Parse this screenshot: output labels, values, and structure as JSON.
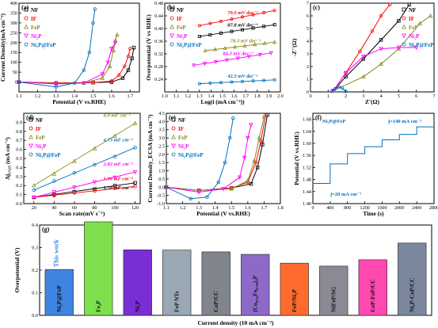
{
  "chart_data": [
    {
      "panel": "(a)",
      "type": "line",
      "xlabel": "Potential (V vs.RHE)",
      "ylabel": "Current Density(mA cm⁻²)",
      "xlim": [
        1.1,
        1.75
      ],
      "ylim": [
        -50,
        400
      ],
      "xticks": [
        1.1,
        1.2,
        1.3,
        1.4,
        1.5,
        1.6,
        1.7
      ],
      "yticks": [
        0,
        50,
        100,
        150,
        200,
        250,
        300,
        350,
        400
      ],
      "series": [
        {
          "name": "NF",
          "color": "#000000",
          "marker": "square",
          "x": [
            1.1,
            1.3,
            1.5,
            1.6,
            1.66,
            1.69,
            1.71,
            1.72
          ],
          "y": [
            0,
            -5,
            -3,
            0,
            20,
            60,
            120,
            175
          ]
        },
        {
          "name": "IF",
          "color": "#ff0000",
          "marker": "circle",
          "x": [
            1.1,
            1.3,
            1.5,
            1.6,
            1.64,
            1.67,
            1.69,
            1.7
          ],
          "y": [
            0,
            -5,
            -3,
            5,
            35,
            80,
            130,
            170
          ]
        },
        {
          "name": "FeP",
          "color": "#8a8a1e",
          "marker": "triangle",
          "x": [
            1.1,
            1.3,
            1.45,
            1.55,
            1.59,
            1.61,
            1.62,
            1.63
          ],
          "y": [
            0,
            -8,
            -5,
            20,
            80,
            160,
            210,
            240
          ]
        },
        {
          "name": "Ni₂P",
          "color": "#ff00ff",
          "marker": "triangle-down",
          "x": [
            1.1,
            1.3,
            1.45,
            1.55,
            1.58,
            1.6,
            1.62
          ],
          "y": [
            0,
            -10,
            -5,
            40,
            100,
            170,
            200
          ]
        },
        {
          "name": "Ni₂P@FeP",
          "color": "#0070c0",
          "marker": "circle",
          "x": [
            1.1,
            1.3,
            1.4,
            1.45,
            1.48,
            1.5,
            1.51
          ],
          "y": [
            0,
            -25,
            -5,
            60,
            150,
            300,
            370
          ]
        }
      ]
    },
    {
      "panel": "(b)",
      "type": "scatter",
      "xlabel": "Log(i (mA cm⁻²))",
      "ylabel": "Overpotential (V vs RHE)",
      "xlim": [
        1.0,
        2.0
      ],
      "ylim": [
        0.2,
        0.48
      ],
      "xticks": [
        1.0,
        1.1,
        1.2,
        1.3,
        1.4,
        1.5,
        1.6,
        1.7,
        1.8,
        1.9,
        2.0
      ],
      "yticks": [
        0.24,
        0.28,
        0.32,
        0.36,
        0.4,
        0.44,
        0.48
      ],
      "series": [
        {
          "name": "NF",
          "color": "#000000",
          "marker": "square",
          "x": [
            1.3,
            1.95
          ],
          "y": [
            0.375,
            0.412
          ],
          "slope": "87.8 mV dec⁻¹"
        },
        {
          "name": "IF",
          "color": "#ff0000",
          "marker": "circle",
          "x": [
            1.3,
            1.95
          ],
          "y": [
            0.409,
            0.457
          ],
          "slope": "79.0 mV dec⁻¹"
        },
        {
          "name": "FeP",
          "color": "#8a8a1e",
          "marker": "triangle",
          "x": [
            1.35,
            1.95
          ],
          "y": [
            0.33,
            0.357
          ],
          "slope": "78.3 mV dec⁻¹"
        },
        {
          "name": "Ni₂P",
          "color": "#ff00ff",
          "marker": "triangle-down",
          "x": [
            1.25,
            1.92
          ],
          "y": [
            0.284,
            0.323
          ],
          "slope": "84.3 mV dec⁻¹"
        },
        {
          "name": "Ni₂P@FeP",
          "color": "#0070c0",
          "marker": "circle",
          "x": [
            1.3,
            1.95
          ],
          "y": [
            0.226,
            0.238
          ],
          "slope": "42.3 mV dec⁻¹"
        }
      ]
    },
    {
      "panel": "(c)",
      "type": "scatter",
      "xlabel": "Z'(Ω)",
      "ylabel": "-Z''(Ω)",
      "xlim": [
        0,
        7
      ],
      "ylim": [
        0,
        7
      ],
      "xticks": [
        0,
        1,
        2,
        3,
        4,
        5,
        6,
        7
      ],
      "yticks": [
        0,
        1,
        2,
        3,
        4,
        5,
        6,
        7
      ],
      "series": [
        {
          "name": "NF",
          "color": "#000000",
          "marker": "square",
          "x": [
            1.3,
            2,
            3,
            4,
            5,
            5.6
          ],
          "y": [
            0.1,
            1.2,
            2.6,
            4.1,
            5.6,
            6.9
          ]
        },
        {
          "name": "IF",
          "color": "#ff0000",
          "marker": "circle",
          "x": [
            1.3,
            2,
            2.8,
            3.5,
            4.0,
            4.5
          ],
          "y": [
            0.1,
            1.5,
            3.2,
            4.8,
            6.0,
            6.9
          ]
        },
        {
          "name": "FeP",
          "color": "#8a8a1e",
          "marker": "triangle",
          "x": [
            1.3,
            3,
            4,
            5,
            6.2,
            6.8
          ],
          "y": [
            0.1,
            1.2,
            2.2,
            3.4,
            5.4,
            6.0
          ]
        },
        {
          "name": "Ni₂P",
          "color": "#ff00ff",
          "marker": "triangle-down",
          "x": [
            1.3,
            2,
            3,
            4,
            5,
            6
          ],
          "y": [
            0.1,
            1.5,
            2.8,
            3.4,
            3.5,
            3.5
          ]
        },
        {
          "name": "Ni₂P@FeP",
          "color": "#0070c0",
          "marker": "circle",
          "x": [
            1.2,
            1.4,
            1.6,
            1.8,
            2.0
          ],
          "y": [
            0.05,
            0.25,
            0.4,
            0.3,
            0.05
          ]
        }
      ]
    },
    {
      "panel": "(d)",
      "type": "scatter",
      "xlabel": "Scan rate(mV s⁻¹)",
      "ylabel": "Δj₁.₂₂₅ (mA cm⁻²)",
      "xlim": [
        10,
        125
      ],
      "ylim": [
        0,
        1.0
      ],
      "xticks": [
        20,
        40,
        60,
        80,
        100,
        120
      ],
      "yticks": [
        0.0,
        0.1,
        0.2,
        0.3,
        0.4,
        0.5,
        0.6,
        0.7,
        0.8,
        0.9
      ],
      "series": [
        {
          "name": "NF",
          "color": "#000000",
          "marker": "square",
          "x": [
            20,
            40,
            60,
            80,
            100,
            120
          ],
          "y": [
            0.07,
            0.1,
            0.13,
            0.16,
            0.2,
            0.23
          ],
          "slope": "1.58 mF cm⁻²"
        },
        {
          "name": "IF",
          "color": "#ff0000",
          "marker": "circle",
          "x": [
            20,
            40,
            60,
            80,
            100,
            120
          ],
          "y": [
            0.07,
            0.09,
            0.12,
            0.14,
            0.17,
            0.19
          ],
          "slope": "1.06 mF cm⁻²"
        },
        {
          "name": "FeP",
          "color": "#8a8a1e",
          "marker": "triangle",
          "x": [
            20,
            40,
            60,
            80,
            100,
            120
          ],
          "y": [
            0.2,
            0.33,
            0.47,
            0.61,
            0.75,
            0.89
          ],
          "slope": "6.9 mF cm⁻²"
        },
        {
          "name": "Ni₂P",
          "color": "#ff00ff",
          "marker": "triangle-down",
          "x": [
            20,
            40,
            60,
            80,
            100,
            120
          ],
          "y": [
            0.07,
            0.13,
            0.18,
            0.24,
            0.29,
            0.35
          ],
          "slope": "2.82 mF cm⁻²"
        },
        {
          "name": "Ni₂P@FeP",
          "color": "#0070c0",
          "marker": "circle",
          "x": [
            20,
            40,
            60,
            80,
            100,
            120
          ],
          "y": [
            0.15,
            0.25,
            0.34,
            0.43,
            0.52,
            0.62
          ],
          "slope": "4.73 mF cm⁻²"
        }
      ]
    },
    {
      "panel": "(e)",
      "type": "line",
      "xlabel": "Potential (V vs.RHE)",
      "ylabel": "Current Density_ECSA (mA cm⁻²)",
      "xlim": [
        1.1,
        1.8
      ],
      "ylim": [
        -1.0,
        4.5
      ],
      "xticks": [
        1.1,
        1.2,
        1.3,
        1.4,
        1.5,
        1.6,
        1.7,
        1.8
      ],
      "yticks": [
        -1.0,
        -0.5,
        0.0,
        0.5,
        1.0,
        1.5,
        2.0,
        2.5,
        3.0,
        3.5,
        4.0,
        4.5
      ],
      "series": [
        {
          "name": "NF",
          "color": "#000000",
          "marker": "square",
          "x": [
            1.1,
            1.3,
            1.5,
            1.62,
            1.66,
            1.69,
            1.72
          ],
          "y": [
            0,
            -0.2,
            -0.05,
            0.2,
            1.2,
            2.6,
            4.4
          ]
        },
        {
          "name": "IF",
          "color": "#ff0000",
          "marker": "circle",
          "x": [
            1.1,
            1.3,
            1.5,
            1.6,
            1.65,
            1.68,
            1.71
          ],
          "y": [
            0,
            -0.2,
            -0.05,
            0.3,
            1.5,
            2.8,
            4.4
          ]
        },
        {
          "name": "FeP",
          "color": "#8a8a1e",
          "marker": "triangle",
          "x": [
            1.1,
            1.3,
            1.5,
            1.6,
            1.64,
            1.67,
            1.7
          ],
          "y": [
            0,
            -0.2,
            -0.1,
            0.4,
            1.6,
            3.0,
            4.3
          ]
        },
        {
          "name": "Ni₂P",
          "color": "#ff00ff",
          "marker": "triangle-down",
          "x": [
            1.1,
            1.3,
            1.45,
            1.55,
            1.58,
            1.6,
            1.62
          ],
          "y": [
            0,
            -0.3,
            -0.1,
            0.6,
            1.8,
            3.0,
            3.8
          ]
        },
        {
          "name": "Ni₂P@FeP",
          "color": "#0070c0",
          "marker": "circle",
          "x": [
            1.1,
            1.25,
            1.35,
            1.42,
            1.46,
            1.49,
            1.51
          ],
          "y": [
            0,
            -0.7,
            -0.6,
            0.3,
            1.5,
            3.0,
            4.2
          ]
        }
      ]
    },
    {
      "panel": "(f)",
      "type": "line",
      "xlabel": "Time (s)",
      "ylabel": "Potential (V vs.RHE)",
      "xlim": [
        0,
        2800
      ],
      "ylim": [
        1.4,
        1.7
      ],
      "xticks": [
        0,
        400,
        800,
        1200,
        1600,
        2000,
        2400,
        2800
      ],
      "yticks": [
        1.4,
        1.44,
        1.48,
        1.52,
        1.56,
        1.6,
        1.64,
        1.68
      ],
      "annotations": [
        "Ni₂P@FeP",
        "j=140 mA cm⁻²",
        "j=20 mA cm⁻²"
      ],
      "series": [
        {
          "name": "Ni₂P@FeP",
          "color": "#0070c0",
          "x": [
            0,
            400,
            400,
            800,
            800,
            1200,
            1200,
            1600,
            1600,
            2000,
            2000,
            2400,
            2400,
            2800
          ],
          "y": [
            1.467,
            1.467,
            1.532,
            1.532,
            1.566,
            1.566,
            1.589,
            1.589,
            1.612,
            1.612,
            1.63,
            1.63,
            1.655,
            1.655
          ]
        }
      ]
    },
    {
      "panel": "(g)",
      "type": "bar",
      "xlabel": "Current density (10 mA cm⁻²)",
      "ylabel": "Overpotential (V)",
      "ylim": [
        0.0,
        0.4
      ],
      "yticks": [
        0.0,
        0.1,
        0.2,
        0.3,
        0.4
      ],
      "annotation": "This work",
      "categories": [
        "Ni₂P@FeP",
        "Fe₂P",
        "Ni₂P",
        "FeP NTs",
        "CoP/CC",
        "(Co₀.₅₂Fe₀.₄₈)₂P",
        "FeP/Ni₂P",
        "NiFeP/SG",
        "CoP-FeP/CC",
        "Ni₂P-CoP/CC"
      ],
      "values": [
        0.203,
        0.414,
        0.29,
        0.289,
        0.281,
        0.27,
        0.231,
        0.218,
        0.246,
        0.32
      ],
      "colors": [
        "#3d85e0",
        "#7ee04d",
        "#7a2fd6",
        "#9aa8b5",
        "#80858c",
        "#8d6ac8",
        "#ff6b2e",
        "#8a8a94",
        "#ff48b0",
        "#7a879c"
      ]
    }
  ],
  "panel_labels": [
    "(a)",
    "(b)",
    "(c)",
    "(d)",
    "(e)",
    "(f)",
    "(g)"
  ]
}
